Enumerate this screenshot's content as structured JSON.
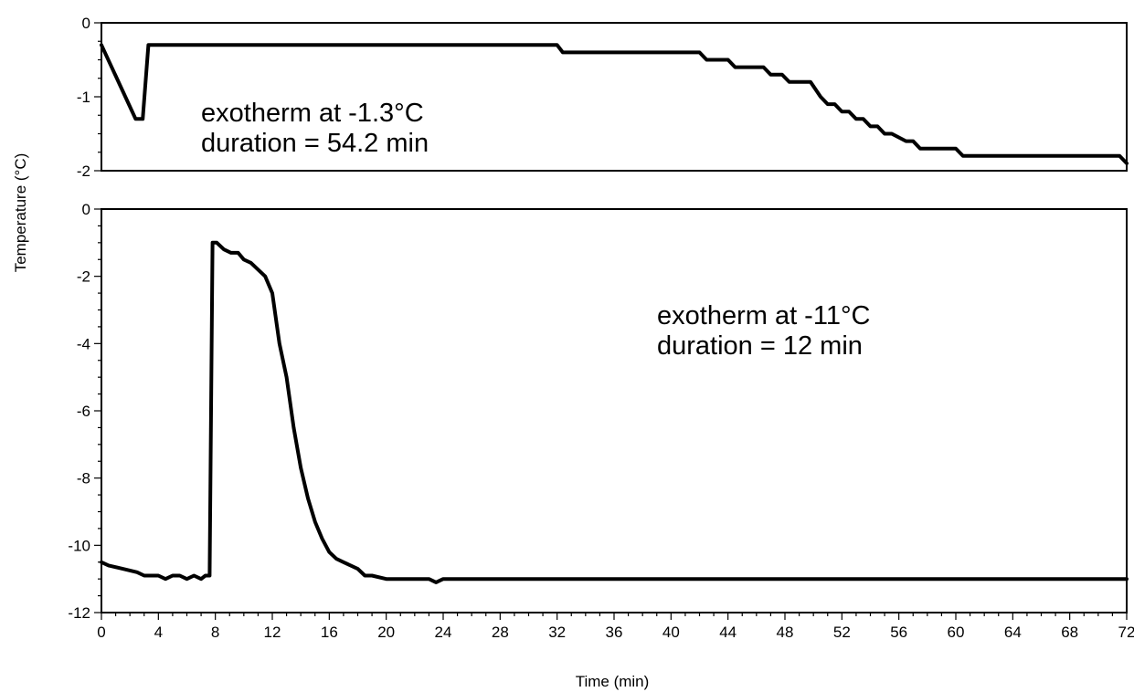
{
  "chart_data": [
    {
      "type": "line",
      "panel": "top",
      "ylabel": "Temperature (°C)",
      "xlim": [
        0,
        72
      ],
      "ylim": [
        -2,
        0
      ],
      "yticks": [
        0,
        -1,
        -2
      ],
      "annotations": [
        "exotherm at -1.3°C",
        "duration = 54.2 min"
      ],
      "series": [
        {
          "x": [
            0,
            2.4,
            2.9,
            3.3,
            32,
            32.4,
            42,
            42.5,
            44,
            44.5,
            46.5,
            47,
            47.8,
            48.3,
            49.8,
            50.5,
            51,
            51.5,
            52,
            52.5,
            53,
            53.5,
            54,
            54.5,
            55,
            55.5,
            56.5,
            57,
            57.5,
            60,
            60.5,
            71.5,
            72
          ],
          "y": [
            -0.3,
            -1.3,
            -1.3,
            -0.3,
            -0.3,
            -0.4,
            -0.4,
            -0.5,
            -0.5,
            -0.6,
            -0.6,
            -0.7,
            -0.7,
            -0.8,
            -0.8,
            -1.0,
            -1.1,
            -1.1,
            -1.2,
            -1.2,
            -1.3,
            -1.3,
            -1.4,
            -1.4,
            -1.5,
            -1.5,
            -1.6,
            -1.6,
            -1.7,
            -1.7,
            -1.8,
            -1.8,
            -1.9
          ]
        }
      ]
    },
    {
      "type": "line",
      "panel": "bottom",
      "xlabel": "Time (min)",
      "ylabel": "Temperature (°C)",
      "xlim": [
        0,
        72
      ],
      "ylim": [
        -12,
        0
      ],
      "xticks": [
        0,
        4,
        8,
        12,
        16,
        20,
        24,
        28,
        32,
        36,
        40,
        44,
        48,
        52,
        56,
        60,
        64,
        68,
        72
      ],
      "yticks": [
        0,
        -2,
        -4,
        -6,
        -8,
        -10,
        -12
      ],
      "annotations": [
        "exotherm at -11°C",
        "duration = 12 min"
      ],
      "series": [
        {
          "x": [
            0,
            0.5,
            1.5,
            2.5,
            3,
            4,
            4.5,
            5,
            5.5,
            6,
            6.5,
            7,
            7.3,
            7.6,
            7.8,
            8.1,
            8.6,
            9.1,
            9.6,
            10,
            10.5,
            11,
            11.5,
            12,
            12.5,
            13,
            13.5,
            14,
            14.5,
            15,
            15.5,
            16,
            16.5,
            17,
            17.5,
            18,
            18.5,
            19,
            20,
            21,
            22,
            23,
            23.5,
            24,
            24.5,
            72
          ],
          "y": [
            -10.5,
            -10.6,
            -10.7,
            -10.8,
            -10.9,
            -10.9,
            -11.0,
            -10.9,
            -10.9,
            -11.0,
            -10.9,
            -11.0,
            -10.9,
            -10.9,
            -1.0,
            -1.0,
            -1.2,
            -1.3,
            -1.3,
            -1.5,
            -1.6,
            -1.8,
            -2.0,
            -2.5,
            -4.0,
            -5.0,
            -6.5,
            -7.7,
            -8.6,
            -9.3,
            -9.8,
            -10.2,
            -10.4,
            -10.5,
            -10.6,
            -10.7,
            -10.9,
            -10.9,
            -11.0,
            -11.0,
            -11.0,
            -11.0,
            -11.1,
            -11.0,
            -11.0,
            -11.0
          ]
        }
      ]
    }
  ],
  "labels": {
    "ylabel": "Temperature (°C)",
    "xlabel": "Time (min)",
    "top_annot_1": "exotherm at -1.3°C",
    "top_annot_2": "duration = 54.2 min",
    "bottom_annot_1": "exotherm at -11°C",
    "bottom_annot_2": "duration = 12 min"
  }
}
